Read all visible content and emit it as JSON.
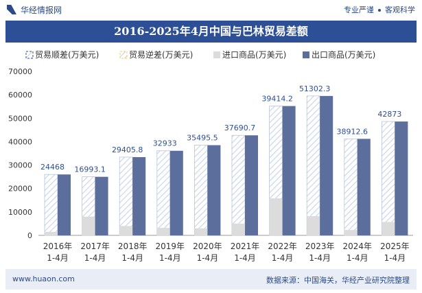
{
  "header": {
    "brand": "华经情报网",
    "slogan_left": "专业严谨",
    "slogan_right": "客观科学"
  },
  "title": "2016-2025年4月中国与巴林贸易差额",
  "footer": {
    "url": "www.huaon.com",
    "source": "数据来源：中国海关，华经产业研究院整理"
  },
  "colors": {
    "surplus": "#2d4f95",
    "deficit": "#f2cc5a",
    "import": "#dcdcdc",
    "export": "#5c6f9c",
    "hatch_line": "#c8d2e6"
  },
  "chart_data": {
    "type": "bar",
    "categories": [
      "2016年\n1-4月",
      "2017年\n1-4月",
      "2018年\n1-4月",
      "2019年\n1-4月",
      "2020年\n1-4月",
      "2021年\n1-4月",
      "2022年\n1-4月",
      "2023年\n1-4月",
      "2024年\n1-4月",
      "2025年\n1-4月"
    ],
    "series": [
      {
        "name": "贸易顺差(万美元)",
        "values": [
          24468,
          16993.1,
          29405.8,
          32933,
          35495.5,
          37690.7,
          39414.2,
          51302.3,
          38912.6,
          42873
        ]
      },
      {
        "name": "贸易逆差(万美元)",
        "values": [
          0,
          0,
          0,
          0,
          0,
          0,
          0,
          0,
          0,
          0
        ]
      },
      {
        "name": "进口商品(万美元)",
        "values": [
          1500,
          8000,
          4000,
          3200,
          3000,
          5000,
          15800,
          8200,
          2300,
          5700
        ]
      },
      {
        "name": "出口商品(万美元)",
        "values": [
          26000,
          25000,
          33400,
          36100,
          38500,
          42700,
          55200,
          59500,
          41200,
          48600
        ]
      }
    ],
    "data_labels": [
      "24468",
      "16993.1",
      "29405.8",
      "32933",
      "35495.5",
      "37690.7",
      "39414.2",
      "51302.3",
      "38912.6",
      "42873"
    ],
    "ylim": [
      0,
      70000
    ],
    "yticks": [
      0,
      10000,
      20000,
      30000,
      40000,
      50000,
      60000,
      70000
    ],
    "legend_position": "top-left",
    "grid": false
  }
}
